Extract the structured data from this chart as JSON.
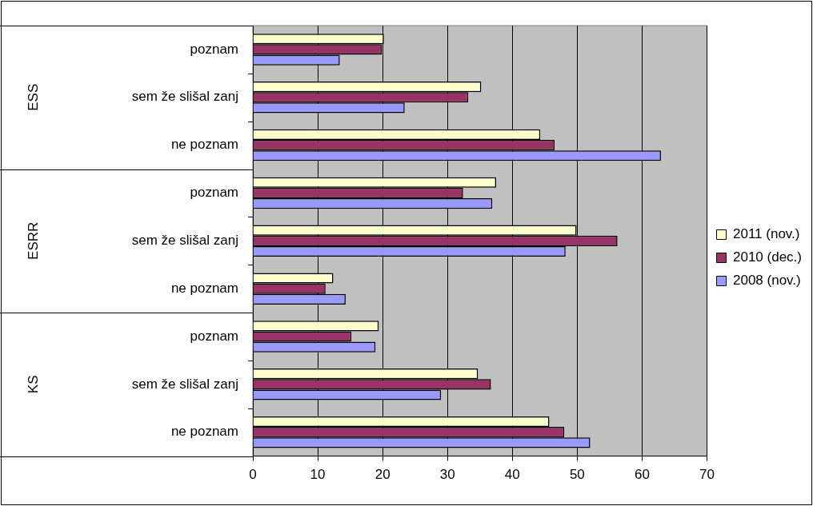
{
  "chart_data": {
    "type": "bar",
    "orientation": "horizontal",
    "categories": [
      "poznam",
      "sem že slišal zanj",
      "ne poznam",
      "poznam",
      "sem že slišal zanj",
      "ne poznam",
      "poznam",
      "sem že slišal zanj",
      "ne poznam"
    ],
    "series": [
      {
        "name": "2011 (nov.)",
        "color": "#ffffcc",
        "values": [
          20.2,
          35.2,
          44.3,
          37.5,
          49.9,
          12.4,
          19.4,
          34.7,
          45.7
        ]
      },
      {
        "name": "2010 (dec.)",
        "color": "#993366",
        "values": [
          19.9,
          33.2,
          46.5,
          32.4,
          56.2,
          11.2,
          15.2,
          36.7,
          48.0
        ]
      },
      {
        "name": "2008 (nov.)",
        "color": "#9999ff",
        "values": [
          13.4,
          23.4,
          62.9,
          36.9,
          48.2,
          14.3,
          18.9,
          29.0,
          52.0
        ]
      }
    ],
    "annotations": [
      "ESS",
      "ESRR",
      "KS"
    ],
    "xlim": [
      0,
      70
    ],
    "xticks": [
      0,
      10,
      20,
      30,
      40,
      50,
      60,
      70
    ],
    "grid": "x",
    "legend": "right"
  }
}
